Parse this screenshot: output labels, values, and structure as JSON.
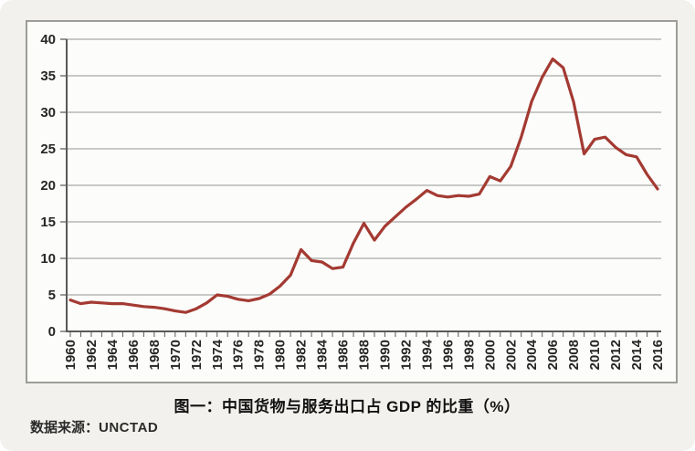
{
  "page": {
    "background": "#ffffff",
    "panel_background": "#f2f1ed"
  },
  "chart_data": {
    "type": "line",
    "title": "图一：中国货物与服务出口占 GDP 的比重（%）",
    "source_label": "数据来源：",
    "source_value": "UNCTAD",
    "xlabel": "",
    "ylabel": "",
    "ylim": [
      0,
      40
    ],
    "ytick_step": 5,
    "xtick_label_step": 2,
    "grid": true,
    "legend": "none",
    "x_years": [
      1960,
      1961,
      1962,
      1963,
      1964,
      1965,
      1966,
      1967,
      1968,
      1969,
      1970,
      1971,
      1972,
      1973,
      1974,
      1975,
      1976,
      1977,
      1978,
      1979,
      1980,
      1981,
      1982,
      1983,
      1984,
      1985,
      1986,
      1987,
      1988,
      1989,
      1990,
      1991,
      1992,
      1993,
      1994,
      1995,
      1996,
      1997,
      1998,
      1999,
      2000,
      2001,
      2002,
      2003,
      2004,
      2005,
      2006,
      2007,
      2008,
      2009,
      2010,
      2011,
      2012,
      2013,
      2014,
      2015,
      2016
    ],
    "series": [
      {
        "color": "#a33a32",
        "values": [
          4.3,
          3.8,
          4.0,
          3.9,
          3.8,
          3.8,
          3.6,
          3.4,
          3.3,
          3.1,
          2.8,
          2.6,
          3.1,
          3.9,
          5.0,
          4.8,
          4.4,
          4.2,
          4.5,
          5.1,
          6.2,
          7.7,
          11.2,
          9.7,
          9.5,
          8.6,
          8.8,
          12.1,
          14.8,
          12.5,
          14.4,
          15.7,
          17.0,
          18.1,
          19.3,
          18.6,
          18.4,
          18.6,
          18.5,
          18.8,
          21.2,
          20.6,
          22.6,
          26.6,
          31.5,
          34.8,
          37.3,
          36.1,
          31.4,
          24.3,
          26.3,
          26.6,
          25.2,
          24.2,
          23.9,
          21.5,
          19.5
        ]
      }
    ]
  },
  "colors": {
    "plot_background": "#fcfcfa",
    "frame_border": "#9c9c98",
    "gridline": "#a8a8a8",
    "axis": "#595959",
    "tick_text": "#262626"
  }
}
